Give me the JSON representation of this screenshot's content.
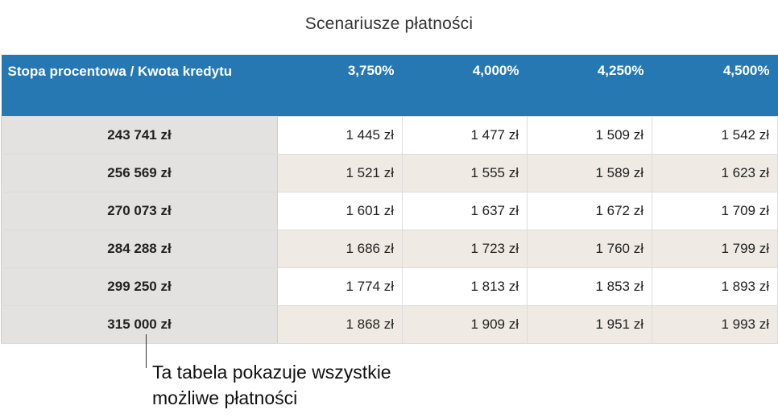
{
  "title": "Scenariusze płatności",
  "table": {
    "corner_header": "Stopa procentowa / Kwota kredytu",
    "rates": [
      "3,750%",
      "4,000%",
      "4,250%",
      "4,500%"
    ],
    "rows": [
      {
        "amount": "243 741 zł",
        "values": [
          "1 445 zł",
          "1 477 zł",
          "1 509 zł",
          "1 542 zł"
        ]
      },
      {
        "amount": "256 569 zł",
        "values": [
          "1 521 zł",
          "1 555 zł",
          "1 589 zł",
          "1 623 zł"
        ]
      },
      {
        "amount": "270 073 zł",
        "values": [
          "1 601 zł",
          "1 637 zł",
          "1 672 zł",
          "1 709 zł"
        ]
      },
      {
        "amount": "284 288 zł",
        "values": [
          "1 686 zł",
          "1 723 zł",
          "1 760 zł",
          "1 799 zł"
        ]
      },
      {
        "amount": "299 250 zł",
        "values": [
          "1 774 zł",
          "1 813 zł",
          "1 853 zł",
          "1 893 zł"
        ]
      },
      {
        "amount": "315 000 zł",
        "values": [
          "1 868 zł",
          "1 909 zł",
          "1 951 zł",
          "1 993 zł"
        ]
      }
    ]
  },
  "callout": {
    "line1": "Ta tabela pokazuje wszystkie",
    "line2": "możliwe płatności"
  },
  "colors": {
    "header_bg": "#2678b3",
    "header_text": "#ffffff",
    "amount_col_bg": "#e3e2e0",
    "alt_row_bg": "#efebe4"
  }
}
